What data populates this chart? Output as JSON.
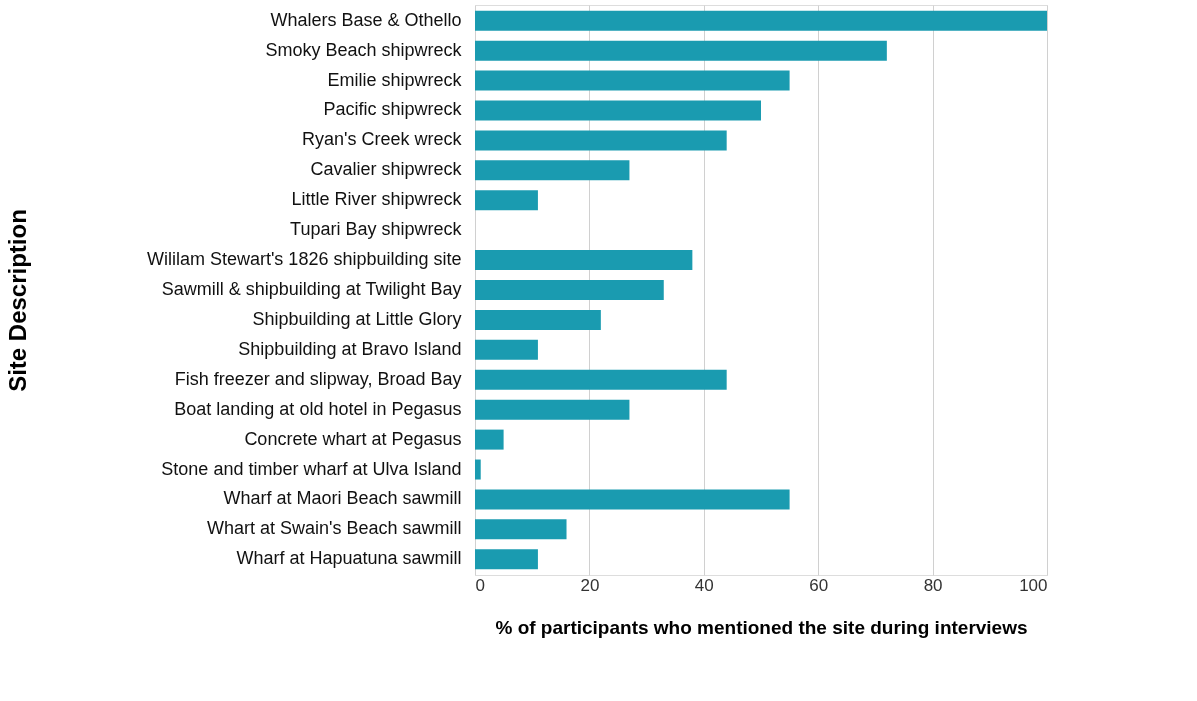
{
  "chart_data": {
    "type": "bar",
    "orientation": "horizontal",
    "xlabel": "% of participants who mentioned the site during interviews",
    "ylabel": "Site Description",
    "categories": [
      "Whalers Base & Othello",
      "Smoky Beach shipwreck",
      "Emilie shipwreck",
      "Pacific shipwreck",
      "Ryan's Creek wreck",
      "Cavalier shipwreck",
      "Little River shipwreck",
      "Tupari Bay shipwreck",
      "Wililam Stewart's 1826 shipbuilding site",
      "Sawmill & shipbuilding at Twilight Bay",
      "Shipbuilding at Little Glory",
      "Shipbuilding at Bravo Island",
      "Fish freezer and slipway, Broad Bay",
      "Boat landing at old hotel in Pegasus",
      "Concrete whart at Pegasus",
      "Stone and timber wharf at Ulva Island",
      "Wharf at Maori Beach sawmill",
      "Whart at Swain's Beach sawmill",
      "Wharf at Hapuatuna sawmill"
    ],
    "values": [
      100,
      72,
      55,
      50,
      44,
      27,
      11,
      0,
      38,
      33,
      22,
      11,
      44,
      27,
      5,
      1,
      55,
      16,
      11
    ],
    "color": "#1a9bb0",
    "xlim": [
      0,
      100
    ],
    "xticks": [
      0,
      20,
      40,
      60,
      80,
      100
    ],
    "grid": "x"
  }
}
